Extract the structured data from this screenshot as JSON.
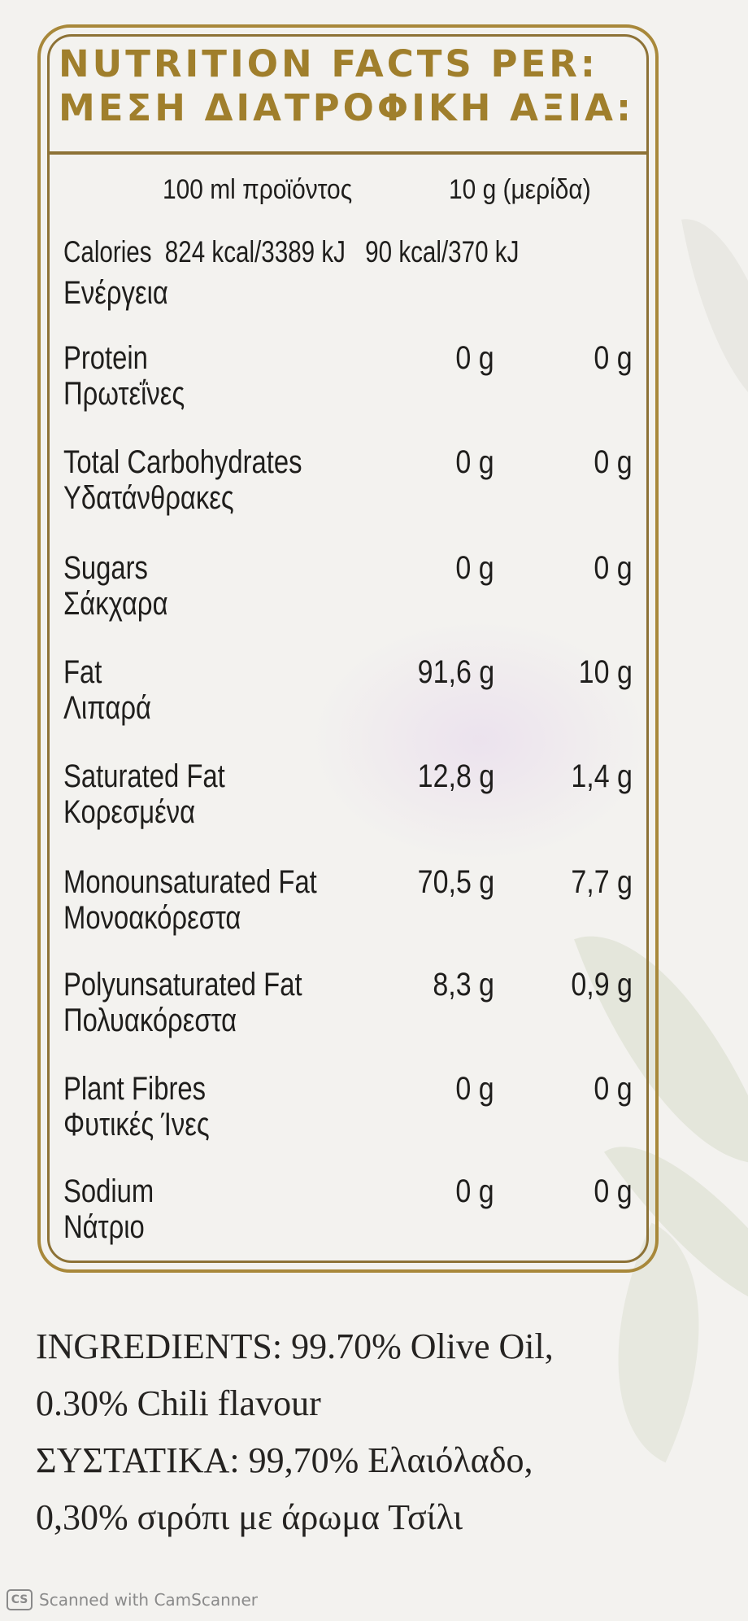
{
  "label": {
    "title_en": "NUTRITION FACTS PER:",
    "title_gr": "ΜΕΣΗ ΔΙΑΤΡΟΦΙΚΗ ΑΞΙΑ:",
    "col_100ml": "100 ml προϊόντος",
    "col_serving": "10 g (μερίδα)",
    "calories": {
      "label_en": "Calories",
      "per_100": "824 kcal/3389 kJ",
      "per_serving": "90 kcal/370 kJ",
      "label_gr": "Ενέργεια"
    },
    "rows": [
      {
        "en": "Protein",
        "gr": "Πρωτεΐνες",
        "v1": "0 g",
        "v2": "0 g"
      },
      {
        "en": "Total Carbohydrates",
        "gr": "Υδατάνθρακες",
        "v1": "0 g",
        "v2": "0 g"
      },
      {
        "en": "Sugars",
        "gr": "Σάκχαρα",
        "v1": "0 g",
        "v2": "0 g"
      },
      {
        "en": "Fat",
        "gr": "Λιπαρά",
        "v1": "91,6 g",
        "v2": "10 g"
      },
      {
        "en": "Saturated Fat",
        "gr": "Κορεσμένα",
        "v1": "12,8 g",
        "v2": "1,4 g"
      },
      {
        "en": "Monounsaturated Fat",
        "gr": "Μονοακόρεστα",
        "v1": "70,5 g",
        "v2": "7,7 g"
      },
      {
        "en": "Polyunsaturated Fat",
        "gr": "Πολυακόρεστα",
        "v1": "8,3 g",
        "v2": "0,9 g"
      },
      {
        "en": "Plant Fibres",
        "gr": "Φυτικές Ίνες",
        "v1": "0 g",
        "v2": "0 g"
      },
      {
        "en": "Sodium",
        "gr": "Νάτριο",
        "v1": "0 g",
        "v2": "0 g"
      }
    ]
  },
  "ingredients": {
    "line1": "INGREDIENTS: 99.70% Olive Oil,",
    "line2": "0.30% Chili flavour",
    "line3": "ΣΥΣΤΑΤΙΚΑ: 99,70% Ελαιόλαδο,",
    "line4": "0,30% σιρόπι με άρωμα Τσίλι"
  },
  "watermark": {
    "logo": "CS",
    "text": "Scanned with CamScanner"
  },
  "colors": {
    "gold": "#a07f2c",
    "frame": "#8d7236",
    "text": "#1f1e1c"
  }
}
